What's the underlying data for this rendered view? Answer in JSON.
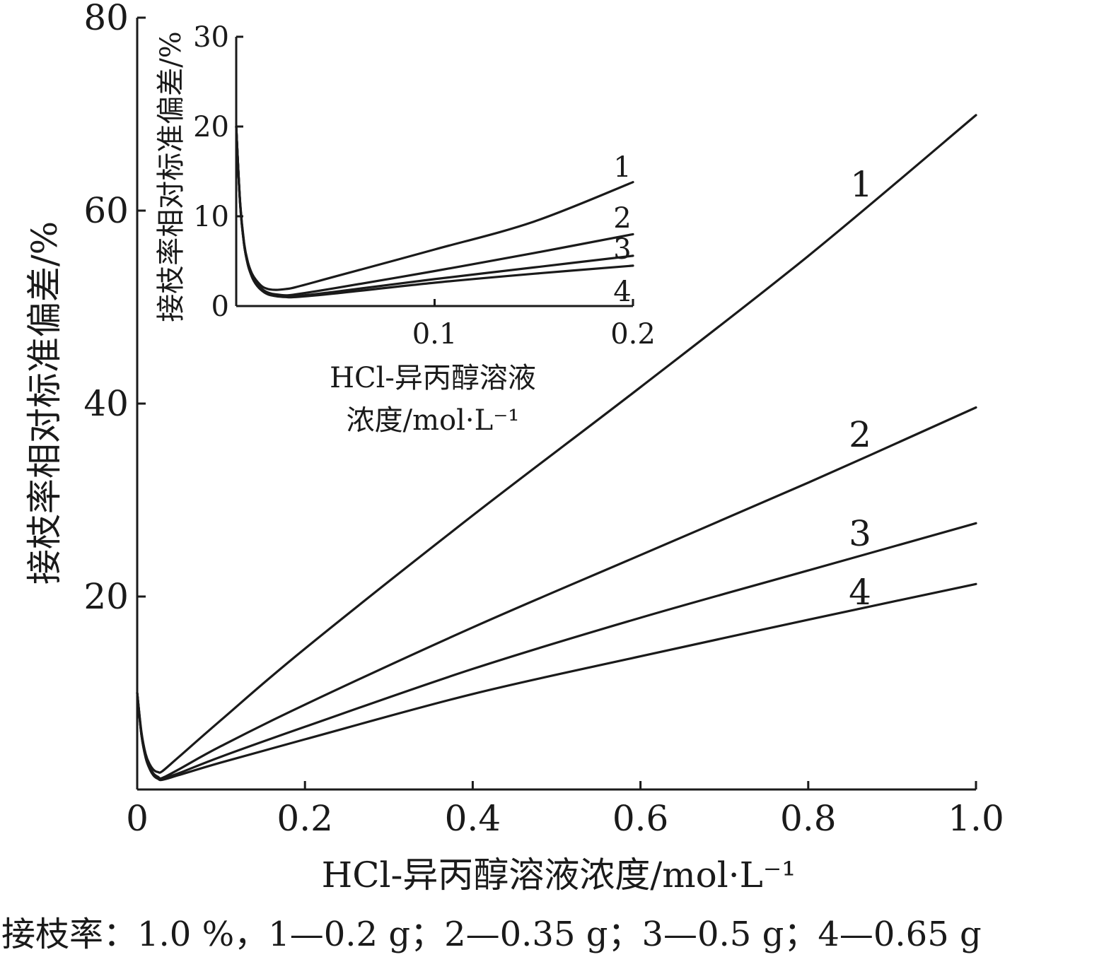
{
  "chart_data": [
    {
      "type": "line",
      "xlabel": "HCl-异丙醇溶液浓度/mol·L⁻¹",
      "ylabel": "接枝率相对标准偏差/%",
      "xlim": [
        0,
        1.0
      ],
      "ylim": [
        0,
        80
      ],
      "xticks": [
        "0",
        "0.2",
        "0.4",
        "0.6",
        "0.8",
        "1.0"
      ],
      "yticks": [
        "20",
        "40",
        "60",
        "80"
      ],
      "series": [
        {
          "name": "1",
          "x": [
            0.0,
            0.005,
            0.01,
            0.015,
            0.02,
            0.025,
            0.03,
            0.05,
            0.1,
            0.2,
            0.4,
            0.6,
            0.8,
            1.0
          ],
          "y": [
            10.0,
            6.0,
            3.7,
            2.6,
            2.0,
            1.8,
            1.9,
            3.4,
            7.2,
            14.6,
            28.4,
            41.7,
            55.3,
            69.9
          ]
        },
        {
          "name": "2",
          "x": [
            0.0,
            0.005,
            0.01,
            0.015,
            0.02,
            0.025,
            0.03,
            0.05,
            0.1,
            0.2,
            0.4,
            0.6,
            0.8,
            1.0
          ],
          "y": [
            10.0,
            5.8,
            3.5,
            2.3,
            1.6,
            1.3,
            1.2,
            2.1,
            4.5,
            8.8,
            16.8,
            24.3,
            31.8,
            39.6
          ]
        },
        {
          "name": "3",
          "x": [
            0.0,
            0.005,
            0.01,
            0.015,
            0.02,
            0.025,
            0.03,
            0.05,
            0.1,
            0.2,
            0.4,
            0.6,
            0.8,
            1.0
          ],
          "y": [
            10.0,
            5.7,
            3.4,
            2.2,
            1.5,
            1.2,
            1.1,
            1.7,
            3.4,
            6.5,
            12.5,
            17.8,
            22.7,
            27.6
          ]
        },
        {
          "name": "4",
          "x": [
            0.0,
            0.005,
            0.01,
            0.015,
            0.02,
            0.025,
            0.03,
            0.05,
            0.1,
            0.2,
            0.4,
            0.6,
            0.8,
            1.0
          ],
          "y": [
            10.0,
            5.7,
            3.3,
            2.1,
            1.4,
            1.1,
            1.0,
            1.5,
            2.8,
            5.2,
            9.9,
            13.8,
            17.6,
            21.3
          ]
        }
      ]
    },
    {
      "type": "line",
      "xlabel": "HCl-异丙醇溶液浓度/mol·L⁻¹",
      "ylabel": "接枝率相对标准偏差/%",
      "xlim": [
        0,
        0.2
      ],
      "ylim": [
        0,
        30
      ],
      "xticks": [
        "0.1",
        "0.2"
      ],
      "yticks": [
        "0",
        "10",
        "20",
        "30"
      ],
      "series": [
        {
          "name": "1",
          "x": [
            0.0,
            0.002,
            0.004,
            0.006,
            0.008,
            0.01,
            0.013,
            0.016,
            0.02,
            0.025,
            0.03,
            0.05,
            0.1,
            0.15,
            0.2
          ],
          "y": [
            20.0,
            11.5,
            7.0,
            4.8,
            3.6,
            2.9,
            2.2,
            1.9,
            1.8,
            1.9,
            2.1,
            3.3,
            6.3,
            9.4,
            13.8
          ]
        },
        {
          "name": "2",
          "x": [
            0.0,
            0.002,
            0.004,
            0.006,
            0.008,
            0.01,
            0.013,
            0.016,
            0.02,
            0.025,
            0.03,
            0.05,
            0.1,
            0.15,
            0.2
          ],
          "y": [
            20.0,
            11.4,
            6.9,
            4.6,
            3.4,
            2.6,
            1.9,
            1.5,
            1.3,
            1.2,
            1.3,
            2.0,
            3.9,
            5.9,
            8.0
          ]
        },
        {
          "name": "3",
          "x": [
            0.0,
            0.002,
            0.004,
            0.006,
            0.008,
            0.01,
            0.013,
            0.016,
            0.02,
            0.025,
            0.03,
            0.05,
            0.1,
            0.15,
            0.2
          ],
          "y": [
            20.0,
            11.3,
            6.8,
            4.5,
            3.3,
            2.5,
            1.8,
            1.4,
            1.2,
            1.1,
            1.1,
            1.6,
            3.0,
            4.3,
            5.6
          ]
        },
        {
          "name": "4",
          "x": [
            0.0,
            0.002,
            0.004,
            0.006,
            0.008,
            0.01,
            0.013,
            0.016,
            0.02,
            0.025,
            0.03,
            0.05,
            0.1,
            0.15,
            0.2
          ],
          "y": [
            20.0,
            11.3,
            6.8,
            4.5,
            3.2,
            2.4,
            1.7,
            1.3,
            1.1,
            1.0,
            1.0,
            1.4,
            2.6,
            3.6,
            4.5
          ]
        }
      ]
    }
  ],
  "caption": "接枝率：1.0 %，1—0.2 g；2—0.35 g；3—0.5 g；4—0.65 g"
}
